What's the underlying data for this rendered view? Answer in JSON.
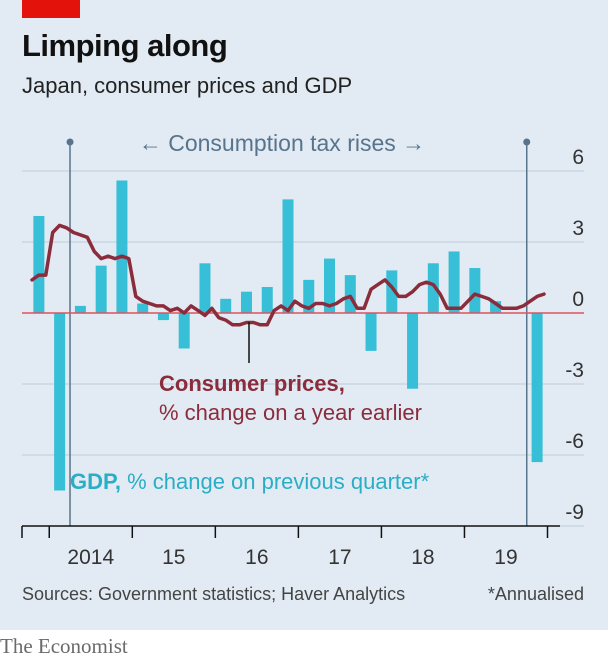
{
  "title": "Limping along",
  "subtitle": "Japan, consumer prices and GDP",
  "source": "Sources: Government statistics; Haver Analytics",
  "footnote": "*Annualised",
  "brand": "The Economist",
  "colors": {
    "gdp": "#36bfd6",
    "cpi": "#8b2c3c",
    "annotation": "#57748c",
    "zero_line": "#e0525d",
    "grid": "#bccbd9",
    "background": "#e2ebf3"
  },
  "annotations": {
    "tax_rises": "← Consumption tax rises →",
    "gdp_label_bold": "GDP,",
    "gdp_label_rest": "% change on previous quarter*",
    "cpi_label_bold": "Consumer prices,",
    "cpi_label_rest": "% change on a year earlier"
  },
  "chart_data": {
    "type": "bar",
    "title": "Limping along",
    "subtitle": "Japan, consumer prices and GDP",
    "ylim": [
      -9,
      6
    ],
    "yticks": [
      6,
      3,
      0,
      -3,
      -6,
      -9
    ],
    "ytick_labels": [
      "6",
      "3",
      "0",
      "-3",
      "-6",
      "-9"
    ],
    "xlim": [
      2013.75,
      2020.0
    ],
    "xticks": [
      2014,
      2015,
      2016,
      2017,
      2018,
      2019
    ],
    "xtick_labels": [
      "2014",
      "15",
      "16",
      "17",
      "18",
      "19"
    ],
    "grid": true,
    "tax_rise_dates": [
      2014.25,
      2019.75
    ],
    "series": [
      {
        "name": "GDP, % change on previous quarter*",
        "type": "bar",
        "x": [
          2013.875,
          2014.125,
          2014.375,
          2014.625,
          2014.875,
          2015.125,
          2015.375,
          2015.625,
          2015.875,
          2016.125,
          2016.375,
          2016.625,
          2016.875,
          2017.125,
          2017.375,
          2017.625,
          2017.875,
          2018.125,
          2018.375,
          2018.625,
          2018.875,
          2019.125,
          2019.375,
          2019.625,
          2019.875
        ],
        "values": [
          4.1,
          -7.5,
          0.3,
          2.0,
          5.6,
          0.4,
          -0.3,
          -1.5,
          2.1,
          0.6,
          0.9,
          1.1,
          4.8,
          1.4,
          2.3,
          1.6,
          -1.6,
          1.8,
          -3.2,
          2.1,
          2.6,
          1.9,
          0.5,
          0.0,
          -6.3
        ]
      },
      {
        "name": "Consumer prices, % change on a year earlier",
        "type": "line",
        "x": [
          2013.792,
          2013.875,
          2013.958,
          2014.042,
          2014.125,
          2014.208,
          2014.292,
          2014.375,
          2014.458,
          2014.542,
          2014.625,
          2014.708,
          2014.792,
          2014.875,
          2014.958,
          2015.042,
          2015.125,
          2015.208,
          2015.292,
          2015.375,
          2015.458,
          2015.542,
          2015.625,
          2015.708,
          2015.792,
          2015.875,
          2015.958,
          2016.042,
          2016.125,
          2016.208,
          2016.292,
          2016.375,
          2016.458,
          2016.542,
          2016.625,
          2016.708,
          2016.792,
          2016.875,
          2016.958,
          2017.042,
          2017.125,
          2017.208,
          2017.292,
          2017.375,
          2017.458,
          2017.542,
          2017.625,
          2017.708,
          2017.792,
          2017.875,
          2017.958,
          2018.042,
          2018.125,
          2018.208,
          2018.292,
          2018.375,
          2018.458,
          2018.542,
          2018.625,
          2018.708,
          2018.792,
          2018.875,
          2018.958,
          2019.042,
          2019.125,
          2019.208,
          2019.292,
          2019.375,
          2019.458,
          2019.542,
          2019.625,
          2019.708,
          2019.792,
          2019.875,
          2019.958
        ],
        "values": [
          1.4,
          1.6,
          1.6,
          3.4,
          3.7,
          3.6,
          3.4,
          3.3,
          3.2,
          2.6,
          2.3,
          2.4,
          2.3,
          2.4,
          2.3,
          0.7,
          0.5,
          0.4,
          0.3,
          0.3,
          0.1,
          0.2,
          0.0,
          0.3,
          0.1,
          -0.1,
          0.2,
          -0.2,
          -0.3,
          -0.5,
          -0.5,
          -0.4,
          -0.4,
          -0.5,
          -0.5,
          0.1,
          0.3,
          0.1,
          0.5,
          0.3,
          0.2,
          0.4,
          0.4,
          0.3,
          0.4,
          0.6,
          0.7,
          0.2,
          0.2,
          1.0,
          1.2,
          1.4,
          1.1,
          0.7,
          0.7,
          0.9,
          1.2,
          1.3,
          1.2,
          0.8,
          0.2,
          0.2,
          0.2,
          0.5,
          0.8,
          0.7,
          0.6,
          0.4,
          0.2,
          0.2,
          0.2,
          0.3,
          0.5,
          0.7,
          0.8
        ]
      }
    ]
  }
}
